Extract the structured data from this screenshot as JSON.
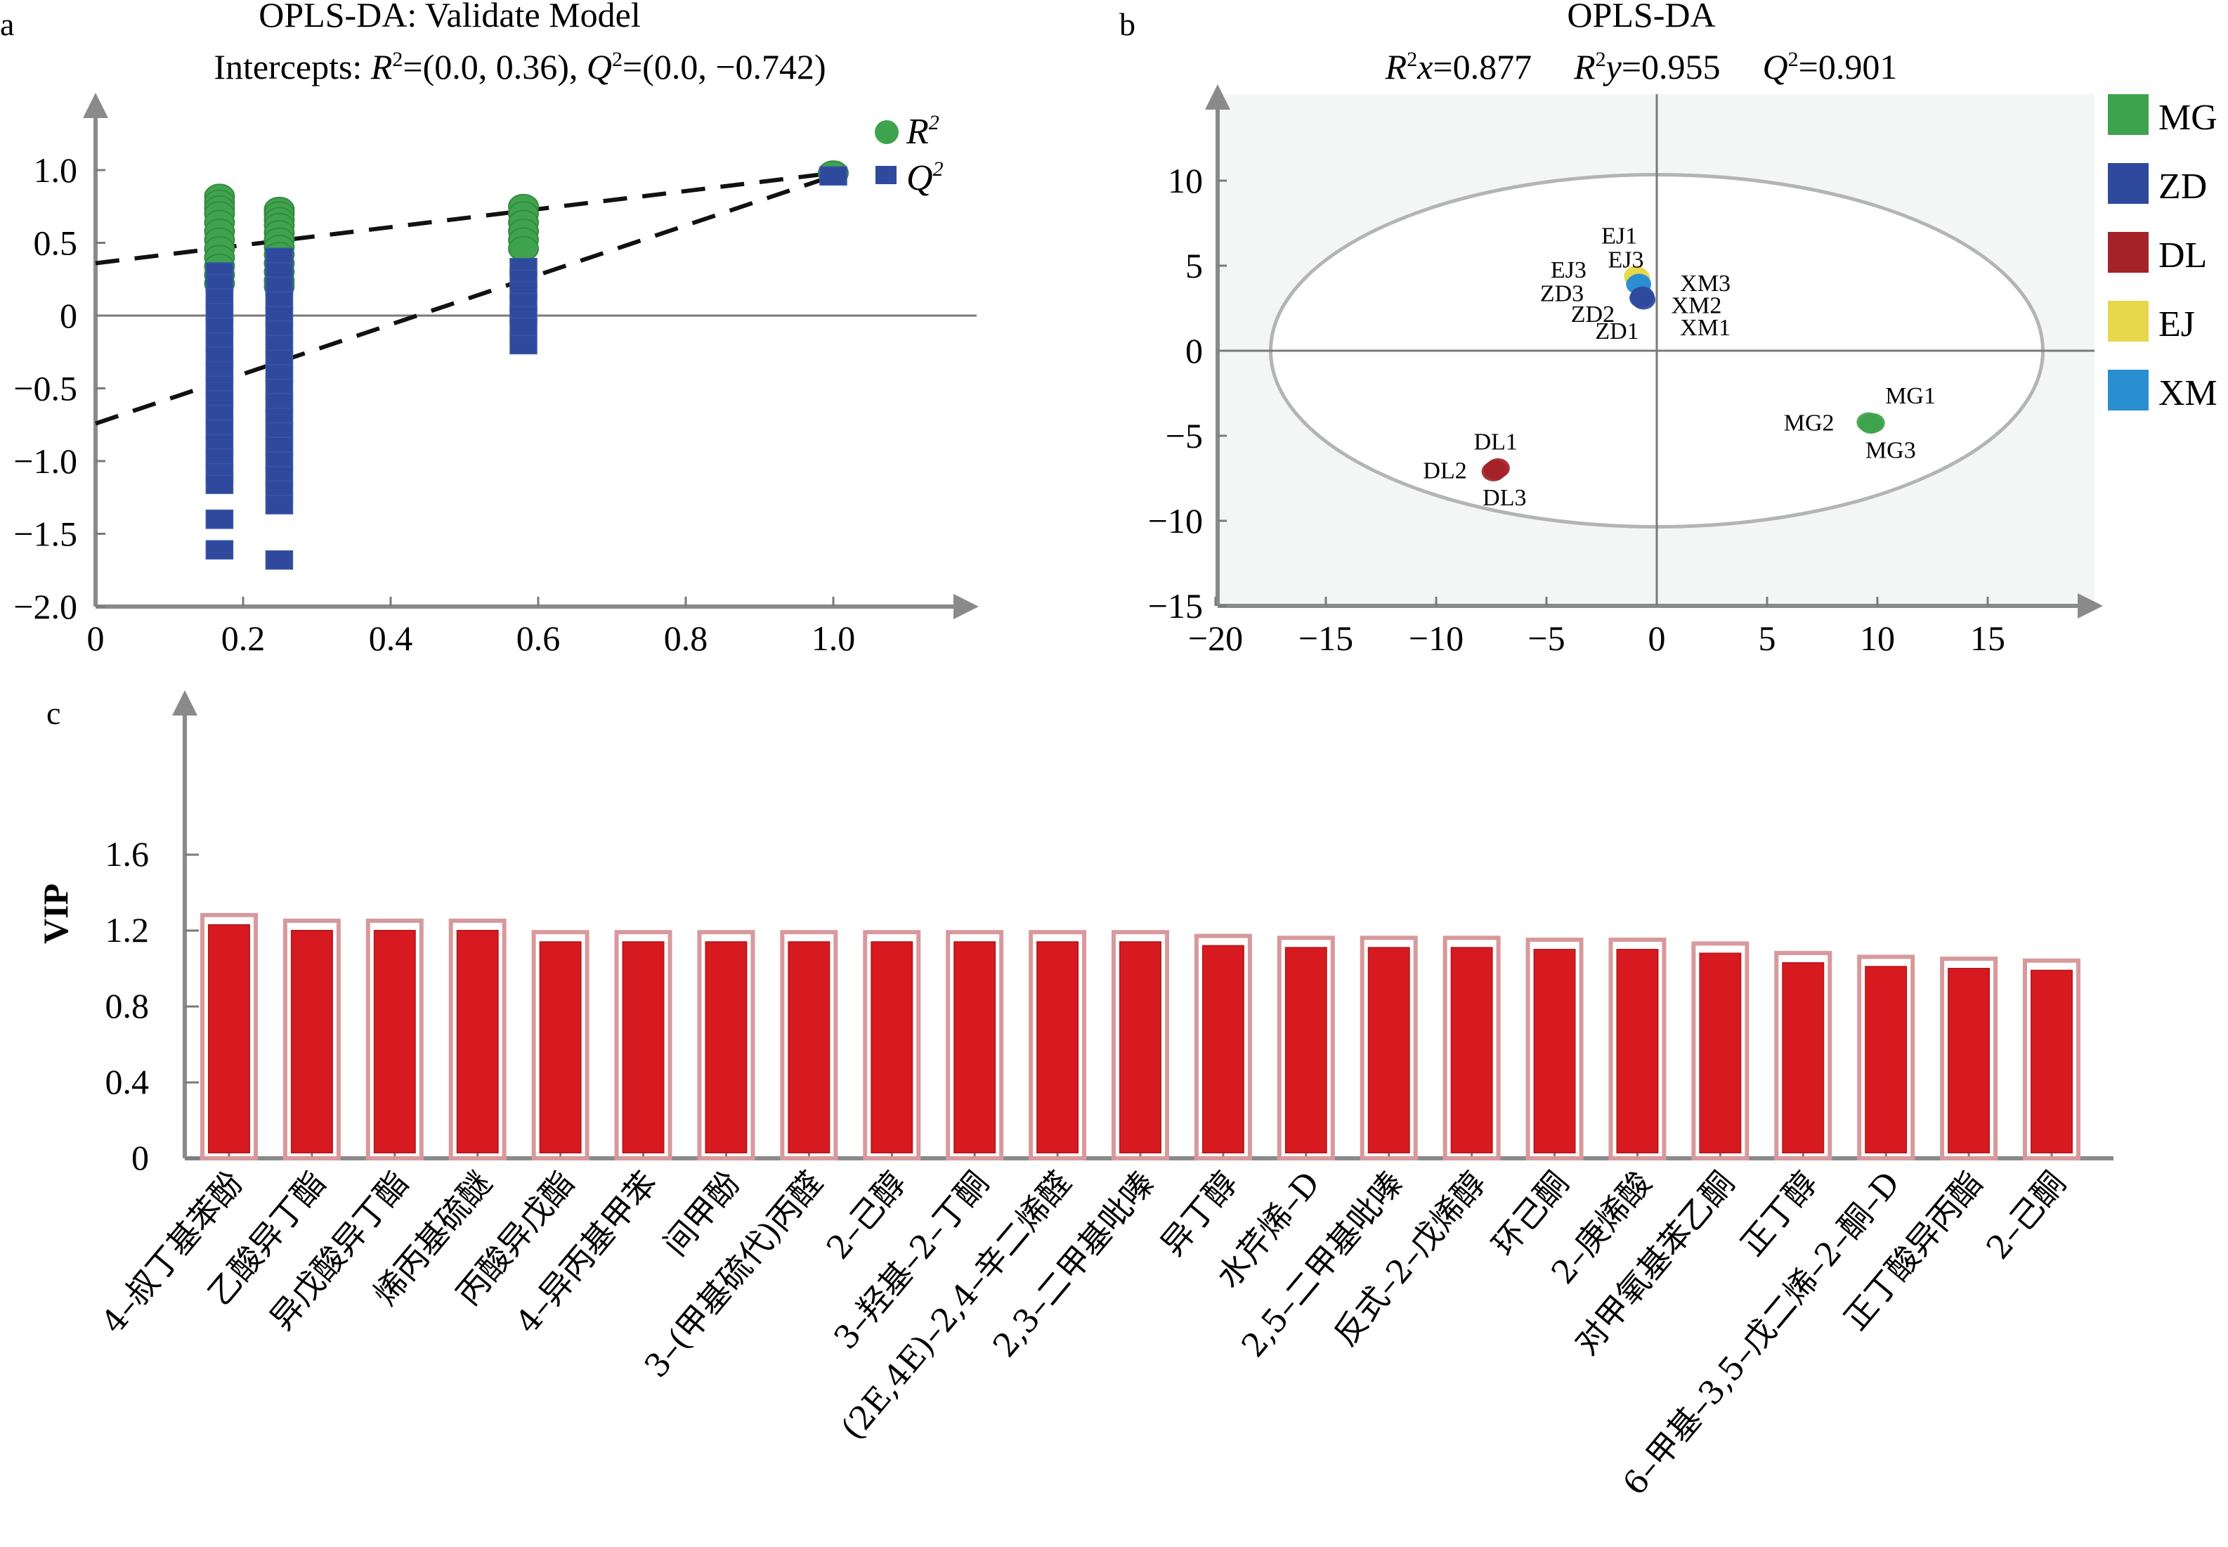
{
  "chart_data": [
    {
      "panel": "a",
      "type": "scatter",
      "title": "OPLS-DA: Validate Model",
      "subtitle": "Intercepts: R2=(0.0, 0.36), Q2=(0.0, -0.742)",
      "subtitle_parts": {
        "prefix": "Intercepts: ",
        "r2_sym": "R",
        "r2_text": "=(0.0, 0.36), ",
        "q2_sym": "Q",
        "q2_text": "=(0.0, −0.742)",
        "sup": "2"
      },
      "xlabel": "",
      "ylabel": "",
      "xlim": [
        0,
        1.18
      ],
      "ylim": [
        -2.0,
        1.4
      ],
      "xticks": [
        0,
        0.2,
        0.4,
        0.6,
        0.8,
        1.0
      ],
      "xtick_labels": [
        "0",
        "0.2",
        "0.4",
        "0.6",
        "0.8",
        "1.0"
      ],
      "yticks": [
        -2.0,
        -1.5,
        -1.0,
        -0.5,
        0,
        0.5,
        1.0
      ],
      "ytick_labels": [
        "−2.0",
        "−1.5",
        "−1.0",
        "−0.5",
        "0",
        "0.5",
        "1.0"
      ],
      "legend": {
        "position": "top-right",
        "entries": [
          {
            "name": "R2",
            "symbol": "circle",
            "color": "#3fa34d"
          },
          {
            "name": "Q2",
            "symbol": "square",
            "color": "#2f4a9c"
          }
        ]
      },
      "series": [
        {
          "name": "R2",
          "color": "#3fa34d",
          "points": [
            [
              0.168,
              0.82
            ],
            [
              0.168,
              0.78
            ],
            [
              0.168,
              0.74
            ],
            [
              0.168,
              0.7
            ],
            [
              0.168,
              0.64
            ],
            [
              0.168,
              0.58
            ],
            [
              0.168,
              0.52
            ],
            [
              0.168,
              0.46
            ],
            [
              0.168,
              0.4
            ],
            [
              0.168,
              0.34
            ],
            [
              0.168,
              0.28
            ],
            [
              0.168,
              0.22
            ],
            [
              0.249,
              0.73
            ],
            [
              0.249,
              0.7
            ],
            [
              0.249,
              0.66
            ],
            [
              0.249,
              0.62
            ],
            [
              0.249,
              0.57
            ],
            [
              0.249,
              0.52
            ],
            [
              0.249,
              0.47
            ],
            [
              0.249,
              0.42
            ],
            [
              0.249,
              0.36
            ],
            [
              0.249,
              0.3
            ],
            [
              0.249,
              0.24
            ],
            [
              0.249,
              0.2
            ],
            [
              0.58,
              0.75
            ],
            [
              0.58,
              0.7
            ],
            [
              0.58,
              0.64
            ],
            [
              0.58,
              0.58
            ],
            [
              0.58,
              0.52
            ],
            [
              0.58,
              0.46
            ],
            [
              1.0,
              0.98
            ]
          ]
        },
        {
          "name": "Q2",
          "color": "#2f4a9c",
          "points": [
            [
              0.168,
              0.3
            ],
            [
              0.168,
              0.22
            ],
            [
              0.168,
              0.12
            ],
            [
              0.168,
              0.02
            ],
            [
              0.168,
              -0.08
            ],
            [
              0.168,
              -0.18
            ],
            [
              0.168,
              -0.28
            ],
            [
              0.168,
              -0.38
            ],
            [
              0.168,
              -0.48
            ],
            [
              0.168,
              -0.58
            ],
            [
              0.168,
              -0.68
            ],
            [
              0.168,
              -0.78
            ],
            [
              0.168,
              -0.88
            ],
            [
              0.168,
              -0.98
            ],
            [
              0.168,
              -1.08
            ],
            [
              0.168,
              -1.16
            ],
            [
              0.168,
              -1.4
            ],
            [
              0.168,
              -1.61
            ],
            [
              0.249,
              0.4
            ],
            [
              0.249,
              0.3
            ],
            [
              0.249,
              0.2
            ],
            [
              0.249,
              0.1
            ],
            [
              0.249,
              0.0
            ],
            [
              0.249,
              -0.1
            ],
            [
              0.249,
              -0.2
            ],
            [
              0.249,
              -0.3
            ],
            [
              0.249,
              -0.4
            ],
            [
              0.249,
              -0.5
            ],
            [
              0.249,
              -0.6
            ],
            [
              0.249,
              -0.7
            ],
            [
              0.249,
              -0.8
            ],
            [
              0.249,
              -0.9
            ],
            [
              0.249,
              -1.0
            ],
            [
              0.249,
              -1.1
            ],
            [
              0.249,
              -1.2
            ],
            [
              0.249,
              -1.3
            ],
            [
              0.249,
              -1.68
            ],
            [
              0.58,
              0.33
            ],
            [
              0.58,
              0.25
            ],
            [
              0.58,
              0.17
            ],
            [
              0.58,
              0.09
            ],
            [
              0.58,
              0.0
            ],
            [
              0.58,
              -0.08
            ],
            [
              0.58,
              -0.2
            ],
            [
              1.0,
              0.96
            ]
          ]
        }
      ],
      "regression_lines": [
        {
          "name": "R2",
          "intercept": 0.36,
          "end": [
            1.0,
            0.98
          ]
        },
        {
          "name": "Q2",
          "intercept": -0.742,
          "end": [
            1.0,
            0.96
          ]
        }
      ]
    },
    {
      "panel": "b",
      "type": "scatter",
      "title": "OPLS-DA",
      "stats": [
        {
          "sym": "R",
          "sup": "2",
          "var": "x",
          "text": "=0.877"
        },
        {
          "sym": "R",
          "sup": "2",
          "var": "y",
          "text": "=0.955"
        },
        {
          "sym": "Q",
          "sup": "2",
          "var": "",
          "text": "=0.901"
        }
      ],
      "xlabel": "",
      "ylabel": "",
      "xlim": [
        -20,
        20
      ],
      "ylim": [
        -15,
        15
      ],
      "xticks": [
        -20,
        -15,
        -10,
        -5,
        0,
        5,
        10,
        15
      ],
      "xtick_labels": [
        "−20",
        "−15",
        "−10",
        "−5",
        "0",
        "5",
        "10",
        "15"
      ],
      "yticks": [
        -15,
        -10,
        -5,
        0,
        5,
        10
      ],
      "ytick_labels": [
        "−15",
        "−10",
        "−5",
        "0",
        "5",
        "10"
      ],
      "ellipse": {
        "center": [
          0,
          0
        ],
        "rx": 17.5,
        "ry": 10.35
      },
      "legend": {
        "position": "right",
        "entries": [
          {
            "name": "MG",
            "color": "#3fa34d"
          },
          {
            "name": "ZD",
            "color": "#2f4a9c"
          },
          {
            "name": "DL",
            "color": "#a42328"
          },
          {
            "name": "EJ",
            "color": "#e6d84a"
          },
          {
            "name": "XM",
            "color": "#2a8fd0"
          }
        ]
      },
      "groups": [
        {
          "name": "EJ",
          "color": "#e6d84a",
          "points": [
            [
              -0.95,
              4.4
            ],
            [
              -0.9,
              4.2
            ],
            [
              -0.85,
              4.3
            ]
          ]
        },
        {
          "name": "XM",
          "color": "#2a8fd0",
          "points": [
            [
              -0.85,
              3.9
            ],
            [
              -0.8,
              3.85
            ],
            [
              -0.8,
              3.95
            ]
          ]
        },
        {
          "name": "ZD",
          "color": "#2f4a9c",
          "points": [
            [
              -0.7,
              3.1
            ],
            [
              -0.6,
              3.0
            ],
            [
              -0.65,
              3.2
            ]
          ]
        },
        {
          "name": "MG",
          "color": "#3fa34d",
          "points": [
            [
              9.6,
              -4.2
            ],
            [
              9.7,
              -4.3
            ],
            [
              9.8,
              -4.25
            ]
          ]
        },
        {
          "name": "DL",
          "color": "#a42328",
          "points": [
            [
              -7.4,
              -7.1
            ],
            [
              -7.2,
              -6.9
            ],
            [
              -7.3,
              -7.0
            ]
          ]
        }
      ],
      "point_labels": [
        {
          "text": "EJ1",
          "at": [
            -1.7,
            6.8
          ]
        },
        {
          "text": "EJ3",
          "at": [
            -1.4,
            5.4
          ]
        },
        {
          "text": "EJ3",
          "at": [
            -4.0,
            4.8
          ]
        },
        {
          "text": "ZD3",
          "at": [
            -4.3,
            3.4
          ]
        },
        {
          "text": "ZD2",
          "at": [
            -2.9,
            2.2
          ]
        },
        {
          "text": "ZD1",
          "at": [
            -1.8,
            1.2
          ]
        },
        {
          "text": "XM3",
          "at": [
            2.2,
            4.0
          ]
        },
        {
          "text": "XM2",
          "at": [
            1.8,
            2.7
          ]
        },
        {
          "text": "XM1",
          "at": [
            2.2,
            1.4
          ]
        },
        {
          "text": "MG1",
          "at": [
            11.5,
            -2.6
          ]
        },
        {
          "text": "MG2",
          "at": [
            6.9,
            -4.2
          ]
        },
        {
          "text": "MG3",
          "at": [
            10.6,
            -5.8
          ]
        },
        {
          "text": "DL1",
          "at": [
            -7.3,
            -5.3
          ]
        },
        {
          "text": "DL2",
          "at": [
            -9.6,
            -7.0
          ]
        },
        {
          "text": "DL3",
          "at": [
            -6.9,
            -8.6
          ]
        }
      ]
    },
    {
      "panel": "c",
      "type": "bar",
      "title": "",
      "xlabel": "",
      "ylabel": "VIP",
      "ylim": [
        0,
        1.6
      ],
      "yticks": [
        0,
        0.4,
        0.8,
        1.2,
        1.6
      ],
      "ytick_labels": [
        "0",
        "0.4",
        "0.8",
        "1.2",
        "1.6"
      ],
      "bar_color": "#d71a1f",
      "bar_outline_color": "#d8999c",
      "categories": [
        "4–叔丁基苯酚",
        "乙酸异丁酯",
        "异戊酸异丁酯",
        "烯丙基硫醚",
        "丙酸异戊酯",
        "4–异丙基甲苯",
        "间甲酚",
        "3–(甲基硫代)丙醛",
        "2–己醇",
        "3–羟基–2–丁酮",
        "(2E,4E)–2,4–辛二烯醛",
        "2,3–二甲基吡嗪",
        "异丁醇",
        "水芹烯–D",
        "2,5–二甲基吡嗪",
        "反式–2–戊烯醇",
        "环己酮",
        "2–庚烯酸",
        "对甲氧基苯乙酮",
        "正丁醇",
        "6–甲基–3,5–戊二烯–2–酮–D",
        "正丁酸异丙酯",
        "2–己酮"
      ],
      "values": [
        1.23,
        1.2,
        1.2,
        1.2,
        1.14,
        1.14,
        1.14,
        1.14,
        1.14,
        1.14,
        1.14,
        1.14,
        1.12,
        1.11,
        1.11,
        1.11,
        1.1,
        1.1,
        1.08,
        1.03,
        1.01,
        1.0,
        0.99
      ]
    }
  ],
  "panel_letters": {
    "a": "a",
    "b": "b",
    "c": "c"
  }
}
